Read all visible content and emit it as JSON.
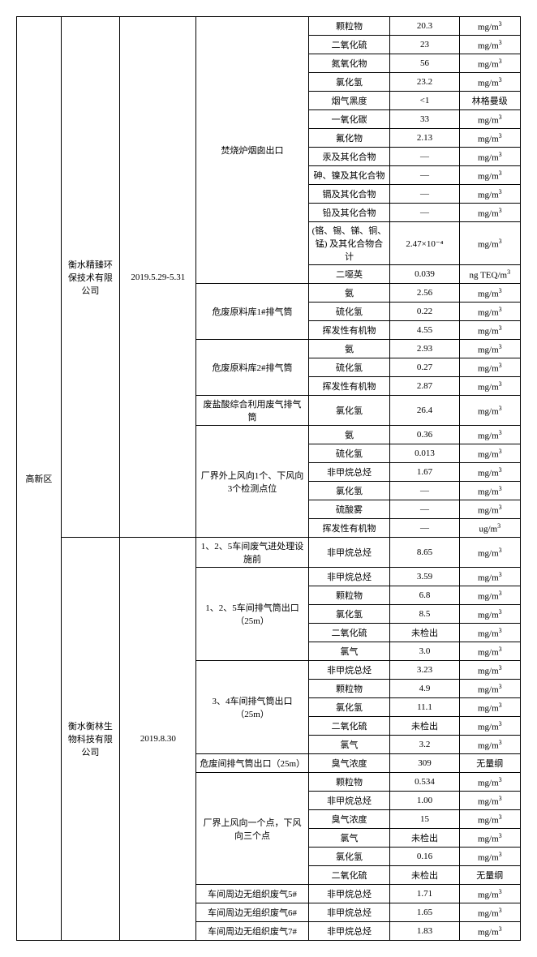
{
  "region": "高新区",
  "companies": [
    {
      "name": "衡水精臻环保技术有限公司",
      "date": "2019.5.29-5.31"
    },
    {
      "name": "衡水衡林生物科技有限公司",
      "date": "2019.8.30"
    }
  ],
  "rows": [
    [
      "焚烧炉烟囱出口",
      "颗粒物",
      "20.3",
      "mg/m³"
    ],
    [
      "",
      "二氧化硫",
      "23",
      "mg/m³"
    ],
    [
      "",
      "氮氧化物",
      "56",
      "mg/m³"
    ],
    [
      "",
      "氯化氢",
      "23.2",
      "mg/m³"
    ],
    [
      "",
      "烟气黑度",
      "<1",
      "林格曼级"
    ],
    [
      "",
      "一氧化碳",
      "33",
      "mg/m³"
    ],
    [
      "",
      "氟化物",
      "2.13",
      "mg/m³"
    ],
    [
      "",
      "汞及其化合物",
      "—",
      "mg/m³"
    ],
    [
      "",
      "砷、镍及其化合物",
      "—",
      "mg/m³"
    ],
    [
      "",
      "镉及其化合物",
      "—",
      "mg/m³"
    ],
    [
      "",
      "铅及其化合物",
      "—",
      "mg/m³"
    ],
    [
      "",
      "(铬、锡、锑、铜、锰) 及其化合物合计",
      "2.47×10⁻⁴",
      "mg/m³"
    ],
    [
      "",
      "二噁英",
      "0.039",
      "ng TEQ/m³"
    ],
    [
      "危废原料库1#排气筒",
      "氨",
      "2.56",
      "mg/m³"
    ],
    [
      "",
      "硫化氢",
      "0.22",
      "mg/m³"
    ],
    [
      "",
      "挥发性有机物",
      "4.55",
      "mg/m³"
    ],
    [
      "危废原料库2#排气筒",
      "氨",
      "2.93",
      "mg/m³"
    ],
    [
      "",
      "硫化氢",
      "0.27",
      "mg/m³"
    ],
    [
      "",
      "挥发性有机物",
      "2.87",
      "mg/m³"
    ],
    [
      "废盐酸综合利用废气排气筒",
      "氯化氢",
      "26.4",
      "mg/m³"
    ],
    [
      "厂界外上风向1个、下风向3个检测点位",
      "氨",
      "0.36",
      "mg/m³"
    ],
    [
      "",
      "硫化氢",
      "0.013",
      "mg/m³"
    ],
    [
      "",
      "非甲烷总烃",
      "1.67",
      "mg/m³"
    ],
    [
      "",
      "氯化氢",
      "—",
      "mg/m³"
    ],
    [
      "",
      "硫酸雾",
      "—",
      "mg/m³"
    ],
    [
      "",
      "挥发性有机物",
      "—",
      "ug/m³"
    ],
    [
      "1、2、5车间废气进处理设施前",
      "非甲烷总烃",
      "8.65",
      "mg/m³"
    ],
    [
      "1、2、5车间排气筒出口（25m）",
      "非甲烷总烃",
      "3.59",
      "mg/m³"
    ],
    [
      "",
      "颗粒物",
      "6.8",
      "mg/m³"
    ],
    [
      "",
      "氯化氢",
      "8.5",
      "mg/m³"
    ],
    [
      "",
      "二氧化硫",
      "未检出",
      "mg/m³"
    ],
    [
      "",
      "氯气",
      "3.0",
      "mg/m³"
    ],
    [
      "3、4车间排气筒出口（25m）",
      "非甲烷总烃",
      "3.23",
      "mg/m³"
    ],
    [
      "",
      "颗粒物",
      "4.9",
      "mg/m³"
    ],
    [
      "",
      "氯化氢",
      "11.1",
      "mg/m³"
    ],
    [
      "",
      "二氧化硫",
      "未检出",
      "mg/m³"
    ],
    [
      "",
      "氯气",
      "3.2",
      "mg/m³"
    ],
    [
      "危废间排气筒出口（25m）",
      "臭气浓度",
      "309",
      "无量纲"
    ],
    [
      "厂界上风向一个点，下风向三个点",
      "颗粒物",
      "0.534",
      "mg/m³"
    ],
    [
      "",
      "非甲烷总烃",
      "1.00",
      "mg/m³"
    ],
    [
      "",
      "臭气浓度",
      "15",
      "mg/m³"
    ],
    [
      "",
      "氯气",
      "未检出",
      "mg/m³"
    ],
    [
      "",
      "氯化氢",
      "0.16",
      "mg/m³"
    ],
    [
      "",
      "二氧化硫",
      "未检出",
      "无量纲"
    ],
    [
      "车间周边无组织废气5#",
      "非甲烷总烃",
      "1.71",
      "mg/m³"
    ],
    [
      "车间周边无组织废气6#",
      "非甲烷总烃",
      "1.65",
      "mg/m³"
    ],
    [
      "车间周边无组织废气7#",
      "非甲烷总烃",
      "1.83",
      "mg/m³"
    ]
  ],
  "spans": {
    "region_rows": 47,
    "company1_rows": 26,
    "company2_rows": 21,
    "loc_spans": [
      13,
      3,
      3,
      1,
      6,
      1,
      5,
      5,
      1,
      6,
      1,
      1,
      1
    ]
  }
}
